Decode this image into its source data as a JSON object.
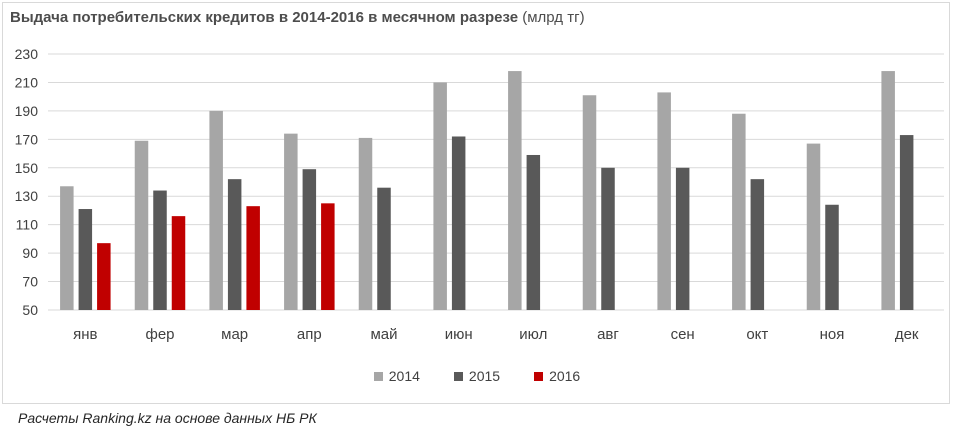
{
  "title": {
    "main": "Выдача потребительских кредитов в 2014-2016 в месячном разрезе",
    "unit": "(млрд тг)"
  },
  "source": "Расчеты Ranking.kz на основе данных НБ РК",
  "colors": {
    "s2014": "#a6a6a6",
    "s2015": "#595959",
    "s2016": "#c00000",
    "grid": "#d9d9d9"
  },
  "chart_data": {
    "type": "bar",
    "title": "Выдача потребительских кредитов в 2014-2016 в месячном разрезе (млрд тг)",
    "xlabel": "",
    "ylabel": "",
    "ylim": [
      50,
      230
    ],
    "yticks": [
      50,
      70,
      90,
      110,
      130,
      150,
      170,
      190,
      210,
      230
    ],
    "grid": true,
    "legend": "bottom",
    "categories": [
      "янв",
      "фер",
      "мар",
      "апр",
      "май",
      "июн",
      "июл",
      "авг",
      "сен",
      "окт",
      "ноя",
      "дек"
    ],
    "series": [
      {
        "name": "2014",
        "values": [
          137,
          169,
          190,
          174,
          171,
          210,
          218,
          201,
          203,
          188,
          167,
          218
        ]
      },
      {
        "name": "2015",
        "values": [
          121,
          134,
          142,
          149,
          136,
          172,
          159,
          150,
          150,
          142,
          124,
          173
        ]
      },
      {
        "name": "2016",
        "values": [
          97,
          116,
          123,
          125,
          null,
          null,
          null,
          null,
          null,
          null,
          null,
          null
        ]
      }
    ]
  }
}
